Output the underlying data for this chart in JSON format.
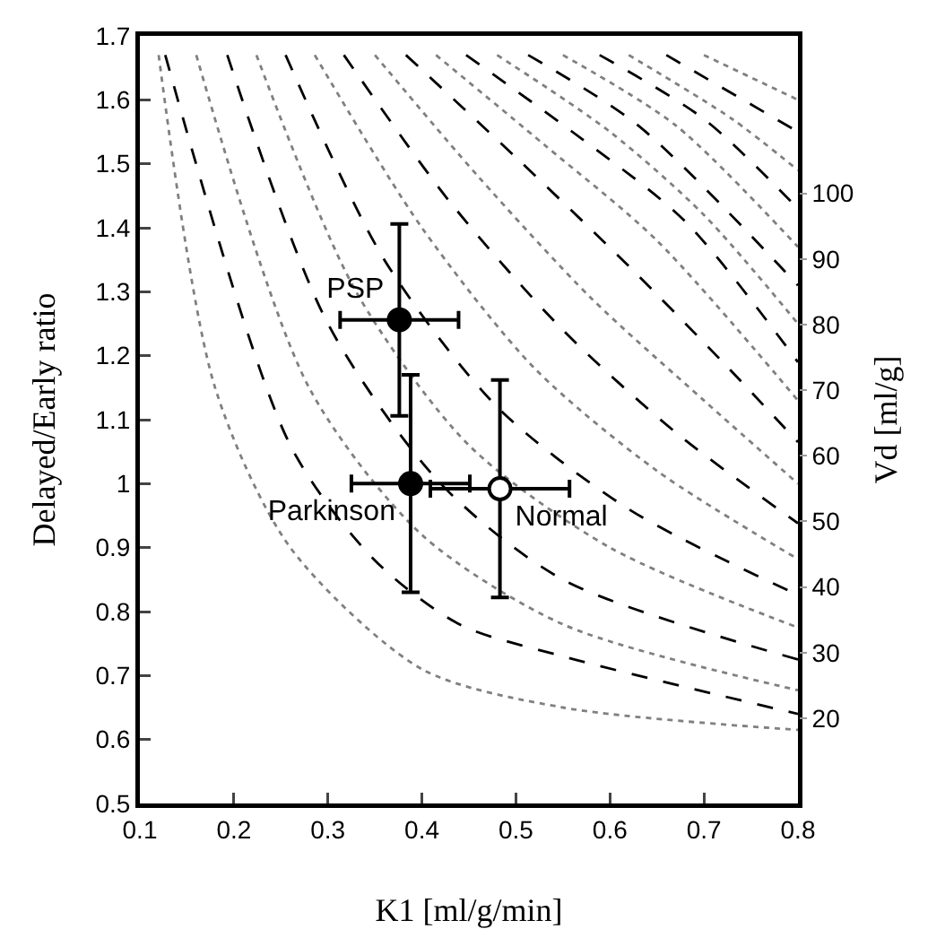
{
  "chart_data": {
    "type": "scatter",
    "xlabel": "K1 [ml/g/min]",
    "ylabel": "Delayed/Early ratio",
    "y2label": "Vd [ml/g]",
    "xlim": [
      0.1,
      0.8
    ],
    "xticks": [
      0.1,
      0.2,
      0.3,
      0.4,
      0.5,
      0.6,
      0.7,
      0.8
    ],
    "ylim": [
      0.5,
      1.7
    ],
    "yticks": [
      0.5,
      0.6,
      0.7,
      0.8,
      0.9,
      1,
      1.1,
      1.2,
      1.3,
      1.4,
      1.5,
      1.6,
      1.7
    ],
    "y2lim": [
      7,
      124
    ],
    "y2ticks": [
      20,
      30,
      40,
      50,
      60,
      70,
      80,
      90,
      100
    ],
    "grid": false,
    "legend": false,
    "marker": "circle",
    "series": [
      {
        "type": "line",
        "color": "#808080",
        "line_style": "dotted",
        "marker": "none",
        "x": [
          0.12,
          0.18,
          0.26,
          0.4,
          0.55,
          0.8
        ],
        "values": [
          1.67,
          1.15,
          0.9,
          0.71,
          0.65,
          0.615
        ]
      },
      {
        "type": "line",
        "color": "#000000",
        "line_style": "dashed",
        "marker": "none",
        "x": [
          0.127,
          0.26,
          0.35,
          0.44,
          0.55,
          0.8
        ],
        "values": [
          1.67,
          1.06,
          0.88,
          0.78,
          0.73,
          0.64
        ]
      },
      {
        "type": "line",
        "color": "#808080",
        "line_style": "dotted",
        "marker": "none",
        "x": [
          0.16,
          0.28,
          0.4,
          0.55,
          0.8
        ],
        "values": [
          1.67,
          1.15,
          0.92,
          0.78,
          0.677
        ]
      },
      {
        "type": "line",
        "color": "#000000",
        "line_style": "dashed",
        "marker": "none",
        "x": [
          0.193,
          0.3,
          0.42,
          0.55,
          0.8
        ],
        "values": [
          1.67,
          1.25,
          1.0,
          0.85,
          0.725
        ]
      },
      {
        "type": "line",
        "color": "#808080",
        "line_style": "dotted",
        "marker": "none",
        "x": [
          0.224,
          0.33,
          0.45,
          0.6,
          0.8
        ],
        "values": [
          1.67,
          1.3,
          1.06,
          0.9,
          0.775
        ]
      },
      {
        "type": "line",
        "color": "#000000",
        "line_style": "dashed",
        "marker": "none",
        "x": [
          0.255,
          0.36,
          0.48,
          0.62,
          0.8
        ],
        "values": [
          1.67,
          1.35,
          1.12,
          0.96,
          0.826
        ]
      },
      {
        "type": "line",
        "color": "#808080",
        "line_style": "dotted",
        "marker": "none",
        "x": [
          0.286,
          0.4,
          0.52,
          0.65,
          0.8
        ],
        "values": [
          1.67,
          1.4,
          1.18,
          1.02,
          0.882
        ]
      },
      {
        "type": "line",
        "color": "#000000",
        "line_style": "dashed",
        "marker": "none",
        "x": [
          0.317,
          0.43,
          0.55,
          0.67,
          0.8
        ],
        "values": [
          1.67,
          1.44,
          1.24,
          1.08,
          0.938
        ]
      },
      {
        "type": "line",
        "color": "#808080",
        "line_style": "dotted",
        "marker": "none",
        "x": [
          0.35,
          0.46,
          0.58,
          0.7,
          0.8
        ],
        "values": [
          1.67,
          1.48,
          1.29,
          1.13,
          1.0
        ]
      },
      {
        "type": "line",
        "color": "#000000",
        "line_style": "dashed",
        "marker": "none",
        "x": [
          0.383,
          0.5,
          0.62,
          0.72,
          0.8
        ],
        "values": [
          1.67,
          1.51,
          1.34,
          1.19,
          1.065
        ]
      },
      {
        "type": "line",
        "color": "#808080",
        "line_style": "dotted",
        "marker": "none",
        "x": [
          0.415,
          0.53,
          0.65,
          0.8
        ],
        "values": [
          1.67,
          1.53,
          1.38,
          1.13
        ]
      },
      {
        "type": "line",
        "color": "#000000",
        "line_style": "dashed",
        "marker": "none",
        "x": [
          0.447,
          0.56,
          0.68,
          0.8
        ],
        "values": [
          1.67,
          1.55,
          1.41,
          1.19
        ]
      },
      {
        "type": "line",
        "color": "#808080",
        "line_style": "dotted",
        "marker": "none",
        "x": [
          0.48,
          0.6,
          0.7,
          0.8
        ],
        "values": [
          1.67,
          1.55,
          1.42,
          1.25
        ]
      },
      {
        "type": "line",
        "color": "#000000",
        "line_style": "dashed",
        "marker": "none",
        "x": [
          0.513,
          0.63,
          0.8
        ],
        "values": [
          1.67,
          1.56,
          1.31
        ]
      },
      {
        "type": "line",
        "color": "#808080",
        "line_style": "dotted",
        "marker": "none",
        "x": [
          0.55,
          0.67,
          0.8
        ],
        "values": [
          1.67,
          1.56,
          1.37
        ]
      },
      {
        "type": "line",
        "color": "#000000",
        "line_style": "dashed",
        "marker": "none",
        "x": [
          0.589,
          0.7,
          0.8
        ],
        "values": [
          1.67,
          1.57,
          1.43
        ]
      },
      {
        "type": "line",
        "color": "#808080",
        "line_style": "dotted",
        "marker": "none",
        "x": [
          0.62,
          0.73,
          0.8
        ],
        "values": [
          1.67,
          1.57,
          1.49
        ]
      },
      {
        "type": "line",
        "color": "#000000",
        "line_style": "dashed",
        "marker": "none",
        "x": [
          0.66,
          0.8
        ],
        "values": [
          1.67,
          1.55
        ]
      },
      {
        "type": "line",
        "color": "#808080",
        "line_style": "dotted",
        "marker": "none",
        "x": [
          0.7,
          0.8
        ],
        "values": [
          1.67,
          1.6
        ]
      },
      {
        "name": "PSP",
        "color": "#000000",
        "x": [
          0.376
        ],
        "values": [
          1.256
        ],
        "errors": [
          0.15
        ],
        "xerrors": [
          0.063
        ]
      },
      {
        "name": "Parkinson",
        "color": "#000000",
        "x": [
          0.388
        ],
        "values": [
          1.0
        ],
        "errors": [
          0.17
        ],
        "xerrors": [
          0.063
        ]
      },
      {
        "name": "Normal",
        "color": "#ffffff",
        "x": [
          0.483
        ],
        "values": [
          0.992
        ],
        "errors": [
          0.17
        ],
        "xerrors": [
          0.074
        ]
      }
    ]
  }
}
